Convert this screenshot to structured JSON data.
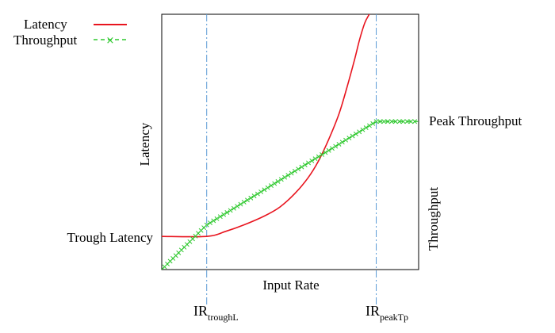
{
  "chart_data": {
    "type": "line",
    "title": "",
    "xlabel": "Input Rate",
    "ylabel_left": "Latency",
    "ylabel_right": "Throughput",
    "xlim": [
      0,
      1
    ],
    "ylim": [
      0,
      1
    ],
    "grid": false,
    "legend": {
      "placement": "top-left",
      "entries": [
        {
          "label": "Latency",
          "color": "#e8141e",
          "style": "solid"
        },
        {
          "label": "Throughput",
          "color": "#2ec82e",
          "style": "dashed-x"
        }
      ]
    },
    "vlines": [
      {
        "x": 0.175,
        "base": "IR",
        "sub": "troughL",
        "color": "#5b9bd5"
      },
      {
        "x": 0.835,
        "base": "IR",
        "sub": "peakTp",
        "color": "#5b9bd5"
      }
    ],
    "annotations": {
      "trough_latency": {
        "text": "Trough Latency",
        "y": 0.13
      },
      "peak_throughput": {
        "text": "Peak Throughput",
        "y": 0.58
      }
    },
    "series": [
      {
        "name": "Latency",
        "color": "#e8141e",
        "x": [
          0,
          0.175,
          0.25,
          0.32,
          0.4,
          0.46,
          0.52,
          0.57,
          0.61,
          0.65,
          0.69,
          0.72,
          0.75,
          0.77,
          0.79,
          0.805,
          0.815,
          0.825
        ],
        "y": [
          0.13,
          0.13,
          0.15,
          0.175,
          0.21,
          0.245,
          0.3,
          0.36,
          0.425,
          0.51,
          0.61,
          0.71,
          0.82,
          0.9,
          0.965,
          0.995,
          1.01,
          1.02
        ]
      },
      {
        "name": "Throughput",
        "color": "#2ec82e",
        "x": [
          0,
          0.175,
          0.835,
          1.0
        ],
        "y": [
          0,
          0.175,
          0.58,
          0.58
        ]
      }
    ]
  }
}
